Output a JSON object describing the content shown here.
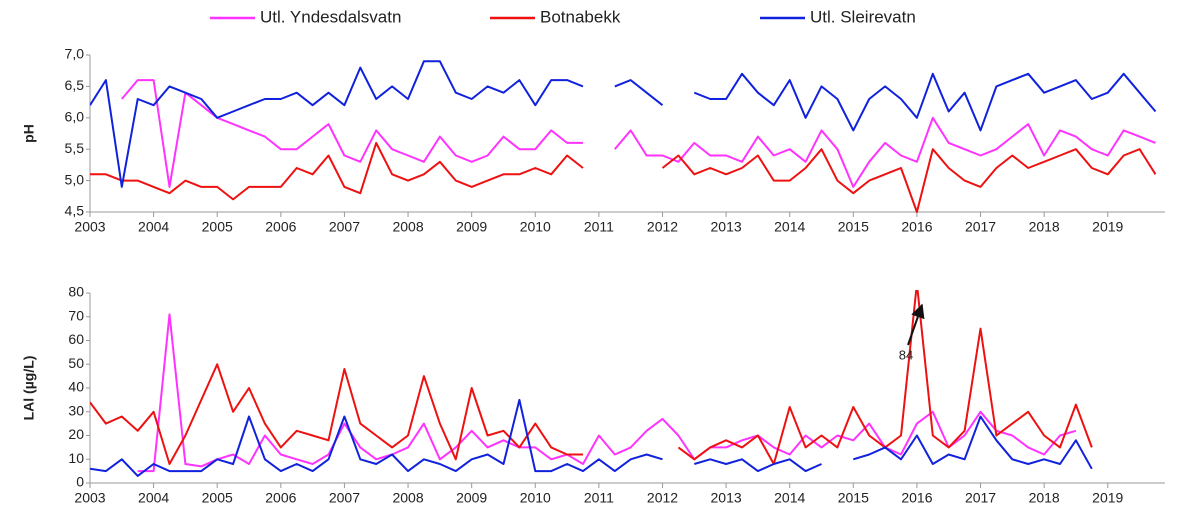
{
  "chart_data": [
    {
      "type": "line",
      "ylabel": "pH",
      "x": [
        2003,
        2003.25,
        2003.5,
        2003.75,
        2004,
        2004.25,
        2004.5,
        2004.75,
        2005,
        2005.25,
        2005.5,
        2005.75,
        2006,
        2006.25,
        2006.5,
        2006.75,
        2007,
        2007.25,
        2007.5,
        2007.75,
        2008,
        2008.25,
        2008.5,
        2008.75,
        2009,
        2009.25,
        2009.5,
        2009.75,
        2010,
        2010.25,
        2010.5,
        2010.75,
        2011,
        2011.25,
        2011.5,
        2011.75,
        2012,
        2012.25,
        2012.5,
        2012.75,
        2013,
        2013.25,
        2013.5,
        2013.75,
        2014,
        2014.25,
        2014.5,
        2014.75,
        2015,
        2015.25,
        2015.5,
        2015.75,
        2016,
        2016.25,
        2016.5,
        2016.75,
        2017,
        2017.25,
        2017.5,
        2017.75,
        2018,
        2018.25,
        2018.5,
        2018.75,
        2019,
        2019.25,
        2019.5,
        2019.75
      ],
      "series": [
        {
          "name": "Utl. Yndesdalsvatn",
          "color": "#ff33ff",
          "values": [
            null,
            null,
            6.3,
            6.6,
            6.6,
            4.9,
            6.4,
            6.2,
            6.0,
            5.9,
            5.8,
            5.7,
            5.5,
            5.5,
            5.7,
            5.9,
            5.4,
            5.3,
            5.8,
            5.5,
            5.4,
            5.3,
            5.7,
            5.4,
            5.3,
            5.4,
            5.7,
            5.5,
            5.5,
            5.8,
            5.6,
            5.6,
            null,
            5.5,
            5.8,
            5.4,
            5.4,
            5.3,
            5.6,
            5.4,
            5.4,
            5.3,
            5.7,
            5.4,
            5.5,
            5.3,
            5.8,
            5.5,
            4.9,
            5.3,
            5.6,
            5.4,
            5.3,
            6.0,
            5.6,
            5.5,
            5.4,
            5.5,
            5.7,
            5.9,
            5.4,
            5.8,
            5.7,
            5.5,
            5.4,
            5.8,
            5.7,
            5.6
          ]
        },
        {
          "name": "Botnabekk",
          "color": "#ee1111",
          "values": [
            5.1,
            5.1,
            5.0,
            5.0,
            4.9,
            4.8,
            5.0,
            4.9,
            4.9,
            4.7,
            4.9,
            4.9,
            4.9,
            5.2,
            5.1,
            5.4,
            4.9,
            4.8,
            5.6,
            5.1,
            5.0,
            5.1,
            5.3,
            5.0,
            4.9,
            5.0,
            5.1,
            5.1,
            5.2,
            5.1,
            5.4,
            5.2,
            null,
            null,
            null,
            null,
            5.2,
            5.4,
            5.1,
            5.2,
            5.1,
            5.2,
            5.4,
            5.0,
            5.0,
            5.2,
            5.5,
            5.0,
            4.8,
            5.0,
            5.1,
            5.2,
            4.5,
            5.5,
            5.2,
            5.0,
            4.9,
            5.2,
            5.4,
            5.2,
            5.3,
            5.4,
            5.5,
            5.2,
            5.1,
            5.4,
            5.5,
            5.1
          ]
        },
        {
          "name": "Utl. Sleirevatn",
          "color": "#1122dd",
          "values": [
            6.2,
            6.6,
            4.9,
            6.3,
            6.2,
            6.5,
            6.4,
            6.3,
            6.0,
            6.1,
            6.2,
            6.3,
            6.3,
            6.4,
            6.2,
            6.4,
            6.2,
            6.8,
            6.3,
            6.5,
            6.3,
            6.9,
            6.9,
            6.4,
            6.3,
            6.5,
            6.4,
            6.6,
            6.2,
            6.6,
            6.6,
            6.5,
            null,
            6.5,
            6.6,
            6.4,
            6.2,
            null,
            6.4,
            6.3,
            6.3,
            6.7,
            6.4,
            6.2,
            6.6,
            6.0,
            6.5,
            6.3,
            5.8,
            6.3,
            6.5,
            6.3,
            6.0,
            6.7,
            6.1,
            6.4,
            5.8,
            6.5,
            6.6,
            6.7,
            6.4,
            6.5,
            6.6,
            6.3,
            6.4,
            6.7,
            6.4,
            6.1
          ]
        }
      ],
      "xlim": [
        2003,
        2019.9
      ],
      "ylim": [
        4.5,
        7
      ],
      "xticks": [
        2003,
        2004,
        2005,
        2006,
        2007,
        2008,
        2009,
        2010,
        2011,
        2012,
        2013,
        2014,
        2015,
        2016,
        2017,
        2018,
        2019
      ],
      "yticks": [
        {
          "value": 4.5,
          "label": "4,5"
        },
        {
          "value": 5,
          "label": "5,0"
        },
        {
          "value": 5.5,
          "label": "5,5"
        },
        {
          "value": 6,
          "label": "6,0"
        },
        {
          "value": 6.5,
          "label": "6,5"
        },
        {
          "value": 7,
          "label": "7,0"
        }
      ]
    },
    {
      "type": "line",
      "ylabel": "LAl (µg/L)",
      "annotation": "84",
      "x": [
        2003,
        2003.25,
        2003.5,
        2003.75,
        2004,
        2004.25,
        2004.5,
        2004.75,
        2005,
        2005.25,
        2005.5,
        2005.75,
        2006,
        2006.25,
        2006.5,
        2006.75,
        2007,
        2007.25,
        2007.5,
        2007.75,
        2008,
        2008.25,
        2008.5,
        2008.75,
        2009,
        2009.25,
        2009.5,
        2009.75,
        2010,
        2010.25,
        2010.5,
        2010.75,
        2011,
        2011.25,
        2011.5,
        2011.75,
        2012,
        2012.25,
        2012.5,
        2012.75,
        2013,
        2013.25,
        2013.5,
        2013.75,
        2014,
        2014.25,
        2014.5,
        2014.75,
        2015,
        2015.25,
        2015.5,
        2015.75,
        2016,
        2016.25,
        2016.5,
        2016.75,
        2017,
        2017.25,
        2017.5,
        2017.75,
        2018,
        2018.25,
        2018.5,
        2018.75
      ],
      "series": [
        {
          "color": "#ff33ff",
          "values": [
            null,
            null,
            null,
            5,
            5,
            71,
            8,
            7,
            10,
            12,
            8,
            20,
            12,
            10,
            8,
            12,
            25,
            15,
            10,
            12,
            15,
            25,
            10,
            15,
            22,
            15,
            18,
            15,
            15,
            10,
            12,
            8,
            20,
            12,
            15,
            22,
            27,
            20,
            10,
            15,
            15,
            18,
            20,
            15,
            12,
            20,
            15,
            20,
            18,
            25,
            15,
            12,
            25,
            30,
            15,
            20,
            30,
            22,
            20,
            15,
            12,
            20,
            22,
            null
          ]
        },
        {
          "color": "#ee1111",
          "values": [
            34,
            25,
            28,
            22,
            30,
            8,
            20,
            35,
            50,
            30,
            40,
            25,
            15,
            22,
            20,
            18,
            48,
            25,
            20,
            15,
            20,
            45,
            25,
            10,
            40,
            20,
            22,
            15,
            25,
            15,
            12,
            12,
            null,
            null,
            null,
            null,
            null,
            15,
            10,
            15,
            18,
            15,
            20,
            8,
            32,
            15,
            20,
            15,
            32,
            20,
            15,
            20,
            84,
            20,
            15,
            22,
            65,
            20,
            25,
            30,
            20,
            15,
            33,
            15
          ]
        },
        {
          "color": "#1122dd",
          "values": [
            6,
            5,
            10,
            3,
            8,
            5,
            5,
            5,
            10,
            8,
            28,
            10,
            5,
            8,
            5,
            10,
            28,
            10,
            8,
            12,
            5,
            10,
            8,
            5,
            10,
            12,
            8,
            35,
            5,
            5,
            8,
            5,
            10,
            5,
            10,
            12,
            10,
            null,
            8,
            10,
            8,
            10,
            5,
            8,
            10,
            5,
            8,
            null,
            10,
            12,
            15,
            10,
            20,
            8,
            12,
            10,
            28,
            18,
            10,
            8,
            10,
            8,
            18,
            6
          ]
        }
      ],
      "xlim": [
        2003,
        2019.9
      ],
      "ylim": [
        0,
        80
      ],
      "xticks": [
        2003,
        2004,
        2005,
        2006,
        2007,
        2008,
        2009,
        2010,
        2011,
        2012,
        2013,
        2014,
        2015,
        2016,
        2017,
        2018,
        2019
      ],
      "yticks": [
        0,
        10,
        20,
        30,
        40,
        50,
        60,
        70,
        80
      ]
    }
  ]
}
